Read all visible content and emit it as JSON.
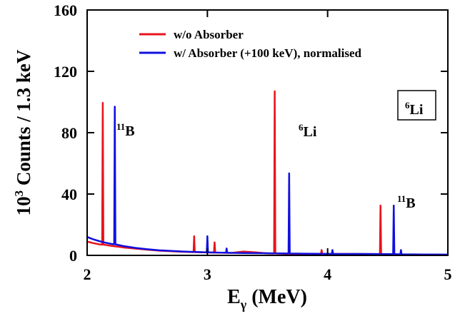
{
  "chart_data": {
    "type": "line",
    "x_label": {
      "base": "E",
      "sub": "γ",
      "rest": " (MeV)"
    },
    "y_label": {
      "base": "10",
      "sup": "3",
      "rest": " Counts / 1.3 keV"
    },
    "xlim": [
      2,
      5
    ],
    "xticks": [
      2,
      3,
      4,
      5
    ],
    "ylim": [
      0,
      160
    ],
    "yticks": [
      0,
      40,
      80,
      120,
      160
    ],
    "legend": "upper left",
    "series": [
      {
        "name": "w/o Absorber",
        "color": "#e8141c",
        "x": [
          2.0,
          2.05,
          2.1,
          2.125,
          2.13,
          2.135,
          2.2,
          2.3,
          2.4,
          2.5,
          2.6,
          2.8,
          2.885,
          2.89,
          2.895,
          3.0,
          3.055,
          3.06,
          3.065,
          3.2,
          3.3,
          3.4,
          3.5,
          3.555,
          3.56,
          3.565,
          3.7,
          3.9,
          3.945,
          3.95,
          3.955,
          4.2,
          4.435,
          4.44,
          4.445,
          4.5,
          4.6,
          4.8,
          5.0
        ],
        "values": [
          9,
          8,
          7.2,
          7,
          99.5,
          7,
          6.2,
          5.2,
          4.4,
          3.7,
          3.1,
          2.3,
          2.1,
          12.5,
          2.1,
          1.9,
          1.8,
          8.5,
          1.8,
          1.6,
          2.5,
          2,
          1.3,
          1.2,
          107,
          1.2,
          1,
          0.9,
          0.9,
          3.5,
          0.9,
          0.9,
          0.8,
          32.5,
          0.8,
          0.7,
          0.6,
          0.5,
          0.4
        ]
      },
      {
        "name": "w/ Absorber (+100 keV), normalised",
        "color": "#1010e0",
        "x": [
          2.0,
          2.05,
          2.1,
          2.15,
          2.2,
          2.225,
          2.23,
          2.235,
          2.3,
          2.4,
          2.5,
          2.6,
          2.8,
          2.995,
          3.0,
          3.005,
          3.155,
          3.16,
          3.165,
          3.3,
          3.5,
          3.675,
          3.68,
          3.685,
          3.8,
          4.035,
          4.04,
          4.045,
          4.3,
          4.545,
          4.55,
          4.555,
          4.605,
          4.61,
          4.615,
          4.8,
          5.0
        ],
        "values": [
          12,
          10.5,
          9.3,
          8.3,
          7.5,
          7.2,
          97,
          7.2,
          6.1,
          4.9,
          4,
          3.3,
          2.5,
          2,
          12.5,
          2,
          1.7,
          4.5,
          1.7,
          1.5,
          1.4,
          1.2,
          53.5,
          1.2,
          1.1,
          1,
          3.5,
          1,
          0.9,
          0.8,
          32.5,
          0.8,
          0.7,
          3.5,
          0.7,
          0.6,
          0.5
        ]
      }
    ],
    "annotations": [
      {
        "sup": "11",
        "text": "B"
      },
      {
        "sup": "6",
        "text": "Li"
      },
      {
        "sup": "11",
        "text": "B"
      },
      {
        "sup": "6",
        "text": "Li"
      }
    ]
  }
}
